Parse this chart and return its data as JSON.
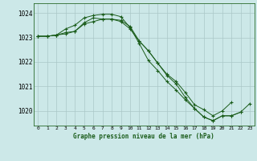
{
  "title": "Graphe pression niveau de la mer (hPa)",
  "background_color": "#cce8e8",
  "grid_color": "#aac8c8",
  "line_color": "#1a5c1a",
  "marker_color": "#1a5c1a",
  "xlim": [
    -0.5,
    23.5
  ],
  "ylim": [
    1019.4,
    1024.4
  ],
  "yticks": [
    1020,
    1021,
    1022,
    1023,
    1024
  ],
  "xticks": [
    0,
    1,
    2,
    3,
    4,
    5,
    6,
    7,
    8,
    9,
    10,
    11,
    12,
    13,
    14,
    15,
    16,
    17,
    18,
    19,
    20,
    21,
    22,
    23
  ],
  "series": [
    [
      1023.05,
      1023.05,
      1023.1,
      1023.2,
      1023.25,
      1023.6,
      1023.8,
      1023.75,
      1023.75,
      1023.7,
      1023.45,
      1022.85,
      1022.45,
      1021.95,
      1021.45,
      1021.1,
      1020.55,
      1020.1,
      1019.75,
      1019.6,
      1019.8,
      1019.8,
      1019.95,
      1020.3
    ],
    [
      1023.05,
      1023.05,
      1023.1,
      1023.35,
      1023.5,
      1023.8,
      1023.9,
      1023.95,
      1023.95,
      1023.85,
      1023.4,
      1022.75,
      1022.05,
      1021.65,
      1021.2,
      1020.85,
      1020.45,
      1020.1,
      1019.75,
      1019.6,
      1019.8,
      1019.8,
      1019.95,
      null
    ],
    [
      1023.05,
      1023.05,
      1023.1,
      1023.15,
      1023.25,
      1023.55,
      1023.65,
      1023.75,
      1023.75,
      1023.65,
      1023.35,
      1022.85,
      1022.45,
      1021.95,
      1021.5,
      1021.2,
      1020.75,
      1020.25,
      1020.05,
      1019.8,
      1020.0,
      1020.35,
      null,
      null
    ]
  ]
}
